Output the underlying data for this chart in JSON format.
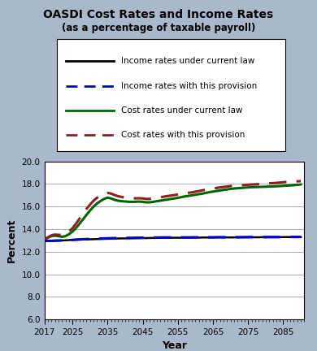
{
  "title": "OASDI Cost Rates and Income Rates",
  "subtitle": "(as a percentage of taxable payroll)",
  "xlabel": "Year",
  "ylabel": "Percent",
  "outer_bg_color": "#aab8cc",
  "plot_bg_color": "#ffffff",
  "inner_bg_color": "#c8d4e4",
  "border_color": "#6b0020",
  "ylim": [
    6.0,
    20.0
  ],
  "yticks": [
    6.0,
    8.0,
    10.0,
    12.0,
    14.0,
    16.0,
    18.0,
    20.0
  ],
  "xticks": [
    2017,
    2025,
    2035,
    2045,
    2055,
    2065,
    2075,
    2085
  ],
  "xmin": 2017,
  "xmax": 2091,
  "legend_entries": [
    "Income rates under current law",
    "Income rates with this provision",
    "Cost rates under current law",
    "Cost rates with this provision"
  ],
  "income_current_law_style": {
    "color": "#000000",
    "linestyle": "solid",
    "linewidth": 1.8
  },
  "income_provision_style": {
    "color": "#0000cc",
    "linestyle": "dashed",
    "linewidth": 2.2
  },
  "cost_current_law_style": {
    "color": "#006400",
    "linestyle": "solid",
    "linewidth": 2.2
  },
  "cost_provision_style": {
    "color": "#8b2020",
    "linestyle": "dashed",
    "linewidth": 2.2
  },
  "years": [
    2017,
    2018,
    2019,
    2020,
    2021,
    2022,
    2023,
    2024,
    2025,
    2026,
    2027,
    2028,
    2029,
    2030,
    2031,
    2032,
    2033,
    2034,
    2035,
    2036,
    2037,
    2038,
    2039,
    2040,
    2041,
    2042,
    2043,
    2044,
    2045,
    2046,
    2047,
    2048,
    2049,
    2050,
    2051,
    2052,
    2053,
    2054,
    2055,
    2056,
    2057,
    2058,
    2059,
    2060,
    2061,
    2062,
    2063,
    2064,
    2065,
    2066,
    2067,
    2068,
    2069,
    2070,
    2071,
    2072,
    2073,
    2074,
    2075,
    2076,
    2077,
    2078,
    2079,
    2080,
    2081,
    2082,
    2083,
    2084,
    2085,
    2086,
    2087,
    2088,
    2089,
    2090
  ],
  "income_current_law_data": [
    12.95,
    12.96,
    12.97,
    12.98,
    12.99,
    13.0,
    13.01,
    13.03,
    13.05,
    13.06,
    13.07,
    13.08,
    13.09,
    13.1,
    13.11,
    13.12,
    13.13,
    13.14,
    13.15,
    13.16,
    13.17,
    13.17,
    13.18,
    13.18,
    13.19,
    13.19,
    13.2,
    13.2,
    13.21,
    13.21,
    13.22,
    13.22,
    13.22,
    13.23,
    13.23,
    13.23,
    13.24,
    13.24,
    13.24,
    13.24,
    13.25,
    13.25,
    13.25,
    13.25,
    13.25,
    13.26,
    13.26,
    13.26,
    13.26,
    13.26,
    13.27,
    13.27,
    13.27,
    13.27,
    13.27,
    13.27,
    13.28,
    13.28,
    13.28,
    13.28,
    13.28,
    13.28,
    13.29,
    13.29,
    13.29,
    13.29,
    13.29,
    13.29,
    13.3,
    13.3,
    13.3,
    13.3,
    13.3,
    13.3
  ],
  "income_provision_data": [
    12.95,
    12.96,
    12.97,
    12.98,
    12.99,
    13.0,
    13.01,
    13.03,
    13.05,
    13.07,
    13.09,
    13.11,
    13.12,
    13.14,
    13.15,
    13.16,
    13.17,
    13.18,
    13.19,
    13.2,
    13.21,
    13.21,
    13.22,
    13.22,
    13.23,
    13.23,
    13.24,
    13.24,
    13.25,
    13.25,
    13.26,
    13.26,
    13.26,
    13.27,
    13.27,
    13.27,
    13.27,
    13.27,
    13.27,
    13.27,
    13.27,
    13.27,
    13.28,
    13.28,
    13.28,
    13.28,
    13.28,
    13.28,
    13.28,
    13.29,
    13.29,
    13.29,
    13.29,
    13.29,
    13.29,
    13.29,
    13.29,
    13.29,
    13.3,
    13.3,
    13.3,
    13.3,
    13.3,
    13.3,
    13.3,
    13.3,
    13.3,
    13.3,
    13.3,
    13.31,
    13.31,
    13.31,
    13.31,
    13.31
  ],
  "cost_current_law_data": [
    13.1,
    13.25,
    13.38,
    13.42,
    13.38,
    13.32,
    13.38,
    13.55,
    13.78,
    14.1,
    14.48,
    14.87,
    15.27,
    15.65,
    16.0,
    16.28,
    16.5,
    16.68,
    16.8,
    16.72,
    16.6,
    16.52,
    16.48,
    16.45,
    16.43,
    16.42,
    16.43,
    16.45,
    16.42,
    16.38,
    16.38,
    16.42,
    16.48,
    16.52,
    16.58,
    16.62,
    16.68,
    16.72,
    16.78,
    16.84,
    16.9,
    16.95,
    17.0,
    17.05,
    17.1,
    17.15,
    17.22,
    17.28,
    17.33,
    17.38,
    17.43,
    17.48,
    17.52,
    17.57,
    17.6,
    17.63,
    17.65,
    17.68,
    17.7,
    17.72,
    17.73,
    17.74,
    17.75,
    17.76,
    17.78,
    17.79,
    17.8,
    17.82,
    17.84,
    17.86,
    17.88,
    17.9,
    17.93,
    17.96
  ],
  "cost_provision_data": [
    13.1,
    13.28,
    13.45,
    13.52,
    13.5,
    13.48,
    13.58,
    13.8,
    14.08,
    14.48,
    14.93,
    15.38,
    15.8,
    16.18,
    16.52,
    16.78,
    16.98,
    17.12,
    17.22,
    17.15,
    17.02,
    16.92,
    16.85,
    16.8,
    16.76,
    16.74,
    16.73,
    16.74,
    16.72,
    16.68,
    16.68,
    16.72,
    16.78,
    16.83,
    16.88,
    16.93,
    16.98,
    17.02,
    17.07,
    17.12,
    17.17,
    17.22,
    17.26,
    17.32,
    17.38,
    17.44,
    17.51,
    17.56,
    17.61,
    17.65,
    17.7,
    17.74,
    17.78,
    17.82,
    17.85,
    17.88,
    17.9,
    17.92,
    17.94,
    17.96,
    17.97,
    17.99,
    18.01,
    18.03,
    18.06,
    18.08,
    18.1,
    18.13,
    18.16,
    18.18,
    18.2,
    18.22,
    18.24,
    18.26
  ]
}
